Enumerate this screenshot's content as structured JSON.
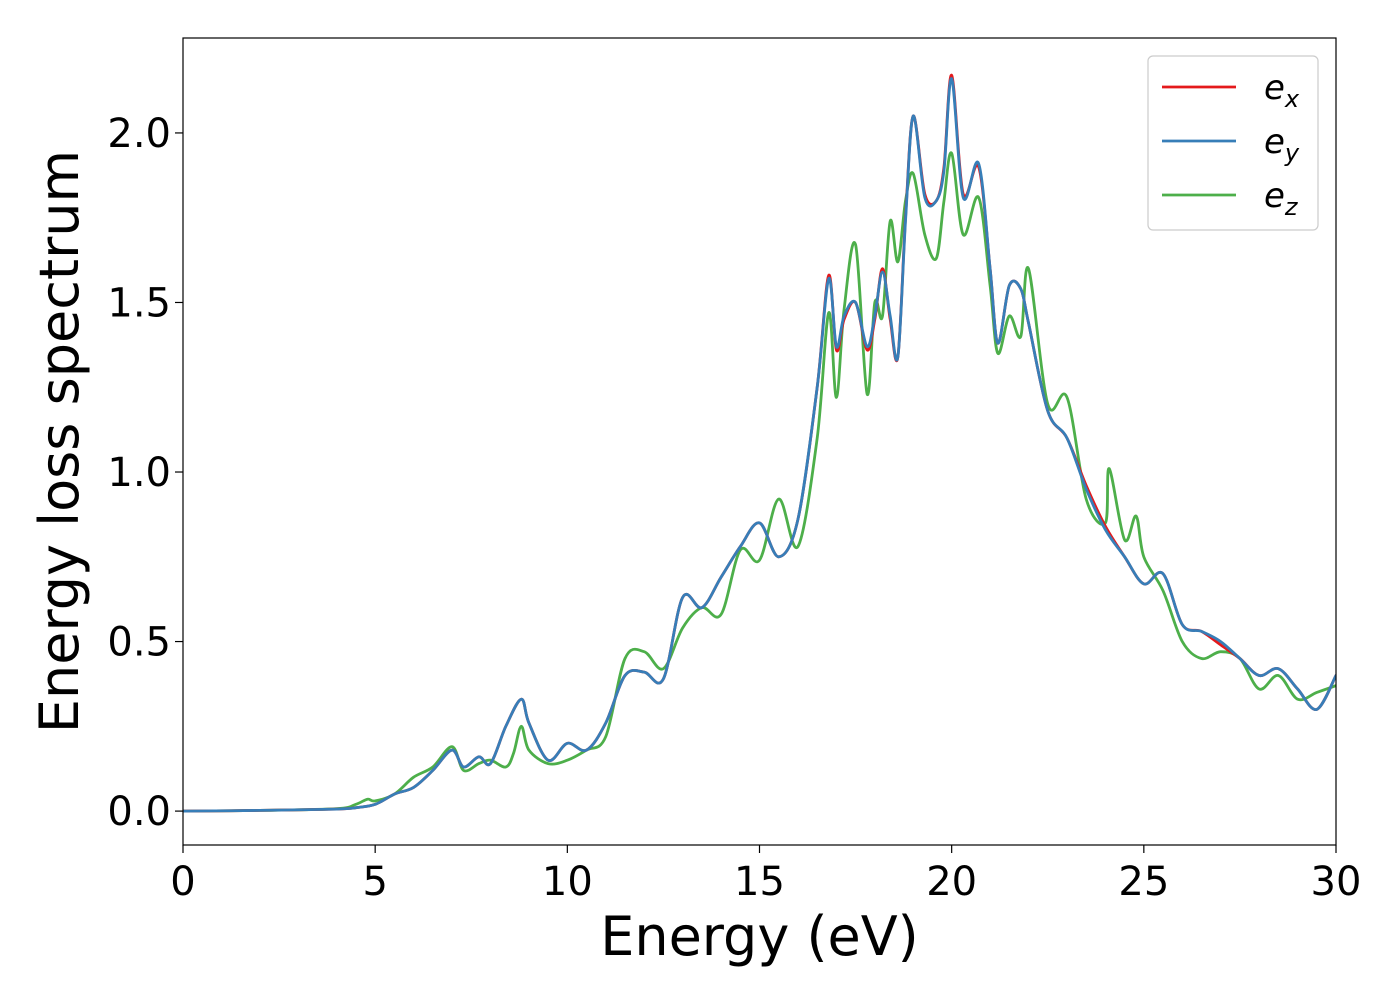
{
  "chart_data": {
    "type": "line",
    "xlabel": "Energy (eV)",
    "ylabel": "Energy loss spectrum",
    "xlim": [
      0,
      30
    ],
    "ylim": [
      -0.1,
      2.28
    ],
    "xticks": [
      0,
      5,
      10,
      15,
      20,
      25,
      30
    ],
    "xtick_labels": [
      "0",
      "5",
      "10",
      "15",
      "20",
      "25",
      "30"
    ],
    "yticks": [
      0.0,
      0.5,
      1.0,
      1.5,
      2.0
    ],
    "ytick_labels": [
      "0.0",
      "0.5",
      "1.0",
      "1.5",
      "2.0"
    ],
    "grid": false,
    "legend_position": "top-right",
    "series": [
      {
        "name": "e_x",
        "label_main": "e",
        "label_sub": "x",
        "color": "#e41a1c",
        "x": [
          0,
          2,
          4,
          4.5,
          5,
          5.5,
          6,
          6.5,
          7,
          7.3,
          7.7,
          8,
          8.4,
          8.8,
          9,
          9.5,
          10,
          10.5,
          11,
          11.5,
          12,
          12.5,
          13,
          13.5,
          14,
          14.5,
          15,
          15.5,
          16,
          16.5,
          16.8,
          17,
          17.2,
          17.5,
          17.8,
          18,
          18.2,
          18.4,
          18.6,
          18.8,
          19,
          19.3,
          19.6,
          19.8,
          20,
          20.3,
          20.7,
          21,
          21.2,
          21.5,
          21.8,
          22,
          22.5,
          23,
          23.5,
          24,
          24.5,
          25,
          25.5,
          26,
          26.5,
          27,
          27.5,
          28,
          28.5,
          29,
          29.5,
          30
        ],
        "y": [
          0,
          0.002,
          0.006,
          0.01,
          0.02,
          0.05,
          0.07,
          0.12,
          0.18,
          0.13,
          0.16,
          0.14,
          0.25,
          0.33,
          0.26,
          0.15,
          0.2,
          0.18,
          0.26,
          0.4,
          0.41,
          0.39,
          0.63,
          0.6,
          0.69,
          0.78,
          0.85,
          0.75,
          0.86,
          1.25,
          1.58,
          1.36,
          1.45,
          1.5,
          1.36,
          1.45,
          1.6,
          1.45,
          1.34,
          1.75,
          2.05,
          1.82,
          1.8,
          1.9,
          2.17,
          1.82,
          1.9,
          1.6,
          1.38,
          1.55,
          1.54,
          1.44,
          1.18,
          1.1,
          0.96,
          0.84,
          0.75,
          0.67,
          0.7,
          0.55,
          0.53,
          0.49,
          0.45,
          0.4,
          0.42,
          0.36,
          0.3,
          0.4
        ]
      },
      {
        "name": "e_y",
        "label_main": "e",
        "label_sub": "y",
        "color": "#377eb8",
        "x": [
          0,
          2,
          4,
          4.5,
          5,
          5.5,
          6,
          6.5,
          7,
          7.3,
          7.7,
          8,
          8.4,
          8.8,
          9,
          9.5,
          10,
          10.5,
          11,
          11.5,
          12,
          12.5,
          13,
          13.5,
          14,
          14.5,
          15,
          15.5,
          16,
          16.5,
          16.8,
          17,
          17.2,
          17.5,
          17.8,
          18,
          18.2,
          18.4,
          18.6,
          18.8,
          19,
          19.3,
          19.6,
          19.8,
          20,
          20.3,
          20.7,
          21,
          21.2,
          21.5,
          21.8,
          22,
          22.5,
          23,
          23.5,
          24,
          24.5,
          25,
          25.5,
          26,
          26.5,
          27,
          27.5,
          28,
          28.5,
          29,
          29.5,
          30
        ],
        "y": [
          0,
          0.002,
          0.006,
          0.01,
          0.02,
          0.05,
          0.07,
          0.12,
          0.18,
          0.13,
          0.16,
          0.14,
          0.25,
          0.33,
          0.26,
          0.15,
          0.2,
          0.18,
          0.26,
          0.4,
          0.41,
          0.39,
          0.63,
          0.6,
          0.69,
          0.78,
          0.85,
          0.75,
          0.86,
          1.25,
          1.57,
          1.37,
          1.46,
          1.5,
          1.37,
          1.46,
          1.59,
          1.46,
          1.34,
          1.74,
          2.05,
          1.81,
          1.8,
          1.89,
          2.16,
          1.81,
          1.91,
          1.6,
          1.38,
          1.55,
          1.54,
          1.44,
          1.18,
          1.1,
          0.95,
          0.83,
          0.75,
          0.67,
          0.7,
          0.55,
          0.53,
          0.5,
          0.45,
          0.4,
          0.42,
          0.36,
          0.3,
          0.4
        ]
      },
      {
        "name": "e_z",
        "label_main": "e",
        "label_sub": "z",
        "color": "#4daf4a",
        "x": [
          0,
          2,
          4,
          4.5,
          4.8,
          5,
          5.5,
          6,
          6.5,
          7,
          7.3,
          7.7,
          8,
          8.4,
          8.6,
          8.8,
          9,
          9.5,
          10,
          10.5,
          11,
          11.5,
          12,
          12.5,
          13,
          13.5,
          14,
          14.5,
          15,
          15.5,
          16,
          16.5,
          16.8,
          17,
          17.2,
          17.5,
          17.8,
          18,
          18.2,
          18.4,
          18.6,
          18.8,
          19,
          19.3,
          19.6,
          19.8,
          20,
          20.3,
          20.7,
          21,
          21.2,
          21.5,
          21.8,
          22,
          22.5,
          23,
          23.5,
          24,
          24.1,
          24.5,
          24.8,
          25,
          25.5,
          26,
          26.5,
          27,
          27.5,
          28,
          28.5,
          29,
          29.5,
          30
        ],
        "y": [
          0,
          0.002,
          0.007,
          0.02,
          0.035,
          0.03,
          0.05,
          0.1,
          0.13,
          0.19,
          0.12,
          0.14,
          0.15,
          0.13,
          0.17,
          0.25,
          0.18,
          0.14,
          0.15,
          0.18,
          0.22,
          0.45,
          0.47,
          0.42,
          0.54,
          0.6,
          0.58,
          0.77,
          0.74,
          0.92,
          0.78,
          1.1,
          1.47,
          1.22,
          1.48,
          1.67,
          1.23,
          1.5,
          1.46,
          1.74,
          1.62,
          1.8,
          1.88,
          1.7,
          1.63,
          1.8,
          1.94,
          1.7,
          1.81,
          1.55,
          1.35,
          1.46,
          1.4,
          1.6,
          1.2,
          1.22,
          0.92,
          0.85,
          1.01,
          0.8,
          0.87,
          0.75,
          0.65,
          0.5,
          0.45,
          0.47,
          0.45,
          0.36,
          0.4,
          0.33,
          0.35,
          0.37
        ]
      }
    ]
  }
}
